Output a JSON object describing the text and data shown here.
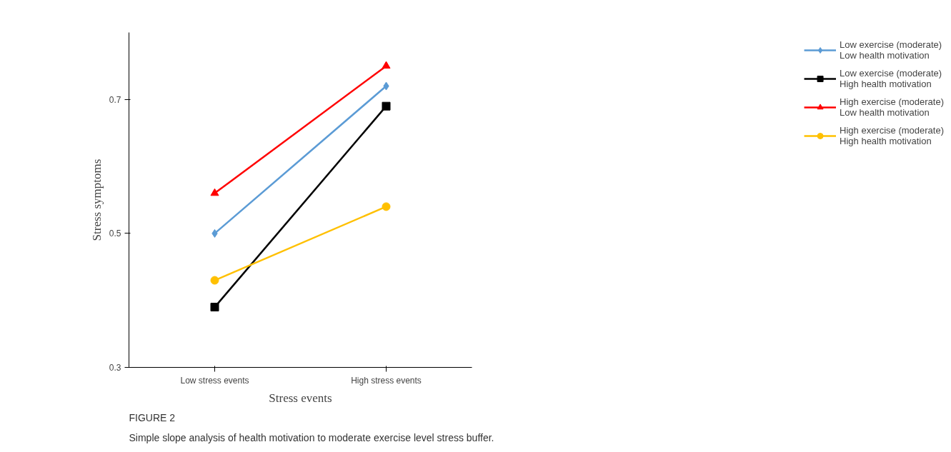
{
  "chart_data": {
    "type": "line",
    "xlabel": "Stress events",
    "ylabel": "Stress symptoms",
    "categories": [
      "Low stress events",
      "High stress events"
    ],
    "series": [
      {
        "name": "Low exercise (moderate)\nLow health motivation",
        "color": "#5b9bd5",
        "marker": "diamond",
        "values": [
          0.5,
          0.72
        ]
      },
      {
        "name": "Low exercise (moderate)\nHigh health motivation",
        "color": "#000000",
        "marker": "square",
        "values": [
          0.39,
          0.69
        ]
      },
      {
        "name": "High exercise (moderate)\nLow health motivation",
        "color": "#ff0000",
        "marker": "triangle",
        "values": [
          0.56,
          0.75
        ]
      },
      {
        "name": "High exercise (moderate)\nHigh health motivation",
        "color": "#ffc000",
        "marker": "circle",
        "values": [
          0.43,
          0.54
        ]
      }
    ],
    "ylim": [
      0.3,
      0.8
    ],
    "yticks": [
      0.3,
      0.5,
      0.7
    ],
    "grid": false,
    "legend": "right",
    "line_style": "solid",
    "annotations": [
      "FIGURE 2",
      "Simple slope analysis of health motivation to moderate exercise level stress buffer."
    ]
  }
}
